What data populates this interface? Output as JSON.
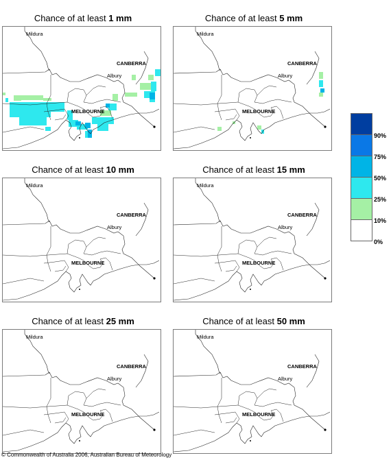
{
  "panels": [
    {
      "prefix": "Chance of at least ",
      "amount": "1 mm",
      "cells": [
        [
          0,
          96,
          4,
          4,
          "#a5f0a5"
        ],
        [
          16,
          100,
          11,
          8,
          "#a5f0a5"
        ],
        [
          27,
          100,
          32,
          7,
          "#a5f0a5"
        ],
        [
          59,
          104,
          12,
          4,
          "#a5f0a5"
        ],
        [
          4,
          104,
          4,
          6,
          "#2ee8ee"
        ],
        [
          10,
          110,
          60,
          22,
          "#2ee8ee"
        ],
        [
          24,
          132,
          40,
          12,
          "#2ee8ee"
        ],
        [
          62,
          146,
          8,
          6,
          "#2ee8ee"
        ],
        [
          70,
          110,
          20,
          14,
          "#2ee8ee"
        ],
        [
          94,
          122,
          8,
          14,
          "#2ee8ee"
        ],
        [
          96,
          136,
          14,
          10,
          "#2ee8ee"
        ],
        [
          108,
          142,
          16,
          8,
          "#2ee8ee"
        ],
        [
          130,
          132,
          32,
          10,
          "#2ee8ee"
        ],
        [
          138,
          142,
          16,
          10,
          "#2ee8ee"
        ],
        [
          120,
          152,
          10,
          10,
          "#2ee8ee"
        ],
        [
          142,
          122,
          16,
          8,
          "#a5f0a5"
        ],
        [
          160,
          98,
          8,
          10,
          "#a5f0a5"
        ],
        [
          154,
          112,
          12,
          10,
          "#2ee8ee"
        ],
        [
          178,
          96,
          18,
          6,
          "#a5f0a5"
        ],
        [
          188,
          70,
          6,
          8,
          "#a5f0a5"
        ],
        [
          200,
          82,
          16,
          10,
          "#a5f0a5"
        ],
        [
          212,
          70,
          8,
          8,
          "#a5f0a5"
        ],
        [
          216,
          80,
          8,
          14,
          "#2ee8ee"
        ],
        [
          222,
          62,
          8,
          10,
          "#2ee8ee"
        ],
        [
          206,
          94,
          16,
          10,
          "#2ee8ee"
        ],
        [
          214,
          104,
          8,
          6,
          "#2ee8ee"
        ],
        [
          120,
          140,
          8,
          8,
          "#00b4e6"
        ],
        [
          124,
          150,
          6,
          12,
          "#00b4e6"
        ],
        [
          106,
          138,
          8,
          6,
          "#00b4e6"
        ],
        [
          150,
          112,
          6,
          6,
          "#00b4e6"
        ],
        [
          214,
          96,
          8,
          10,
          "#00b4e6"
        ]
      ]
    },
    {
      "prefix": "Chance of at least ",
      "amount": "5 mm",
      "cells": [
        [
          212,
          66,
          6,
          10,
          "#a5f0a5"
        ],
        [
          212,
          78,
          6,
          10,
          "#2ee8ee"
        ],
        [
          214,
          90,
          6,
          6,
          "#00b4e6"
        ],
        [
          212,
          96,
          6,
          6,
          "#a5f0a5"
        ],
        [
          64,
          146,
          6,
          6,
          "#a5f0a5"
        ],
        [
          122,
          144,
          6,
          6,
          "#a5f0a5"
        ],
        [
          128,
          150,
          4,
          6,
          "#2ee8ee"
        ],
        [
          86,
          138,
          4,
          4,
          "#a5f0a5"
        ]
      ]
    },
    {
      "prefix": "Chance of at least ",
      "amount": "10 mm",
      "cells": []
    },
    {
      "prefix": "Chance of at least ",
      "amount": "15 mm",
      "cells": []
    },
    {
      "prefix": "Chance of at least ",
      "amount": "25 mm",
      "cells": []
    },
    {
      "prefix": "Chance of at least ",
      "amount": "50 mm",
      "cells": []
    }
  ],
  "cities": {
    "mildura": "Mildura",
    "canberra": "CANBERRA",
    "albury": "Albury",
    "melbourne": "MELBOURNE"
  },
  "legend": {
    "colors": [
      "#003ea0",
      "#0a78e6",
      "#00b4e6",
      "#2ee8ee",
      "#a5f0a5",
      "#ffffff"
    ],
    "labels": [
      "90%",
      "75%",
      "50%",
      "25%",
      "10%",
      "0%"
    ]
  },
  "copyright": "© Commonwealth of Australia 2006, Australian Bureau of Meteorology"
}
